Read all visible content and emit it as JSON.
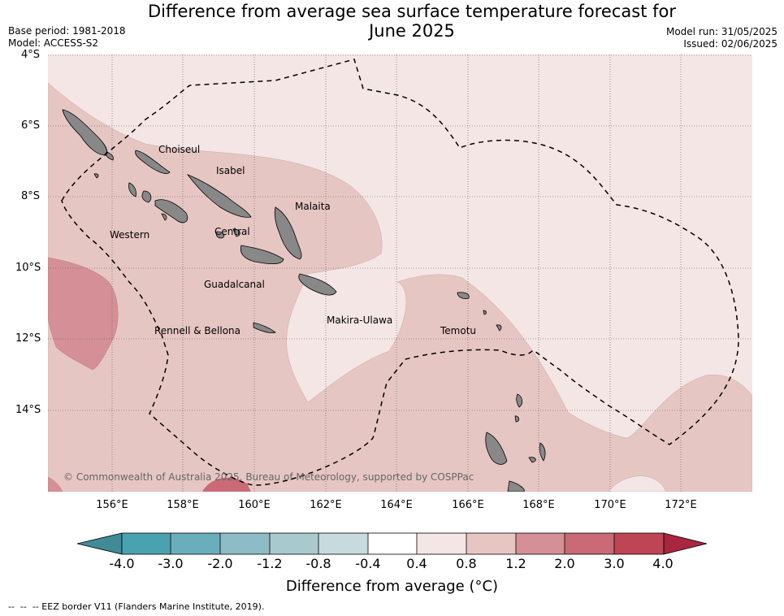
{
  "title": "Difference from average sea surface temperature forecast for June 2025",
  "title_line1": "Difference from average sea surface temperature forecast for",
  "title_line2": "June 2025",
  "meta_left": {
    "base_period": "Base period: 1981-2018",
    "model": "Model: ACCESS-S2"
  },
  "meta_right": {
    "model_run": "Model run: 31/05/2025",
    "issued": "Issued: 02/06/2025"
  },
  "map": {
    "lat_ticks": [
      "4°S",
      "6°S",
      "8°S",
      "10°S",
      "12°S",
      "14°S"
    ],
    "lon_ticks": [
      "156°E",
      "158°E",
      "160°E",
      "162°E",
      "164°E",
      "166°E",
      "168°E",
      "170°E",
      "172°E"
    ],
    "grid": true,
    "region_labels": [
      "Choiseul",
      "Isabel",
      "Malaita",
      "Western",
      "Central",
      "Guadalcanal",
      "Rennell & Bellona",
      "Makira-Ulawa",
      "Temotu"
    ],
    "copyright": "© Commonwealth of Australia 2025, Bureau of Meteorology, supported by COSPPac",
    "colors": {
      "land": "#888888",
      "band_0_4_0_8": "#f4e6e5",
      "band_0_8_1_2": "#e6c6c3",
      "band_1_2_2_0": "#d49096",
      "band_2_0_3_0": "#c96a76"
    }
  },
  "colorbar": {
    "labels": [
      "-4.0",
      "-3.0",
      "-2.0",
      "-1.2",
      "-0.8",
      "-0.4",
      "0.4",
      "0.8",
      "1.2",
      "2.0",
      "3.0",
      "4.0"
    ],
    "colors": [
      "#3f8c97",
      "#4aa2b1",
      "#6aaebc",
      "#8dbcc6",
      "#a9c9cd",
      "#c8dadd",
      "#ffffff",
      "#f4e6e5",
      "#e6c6c3",
      "#d49096",
      "#c96a76",
      "#bd4554",
      "#a8263f"
    ],
    "title": "Difference from average (°C)"
  },
  "footnote": "--  --  -- EEZ border V11 (Flanders Marine Institute, 2019)."
}
